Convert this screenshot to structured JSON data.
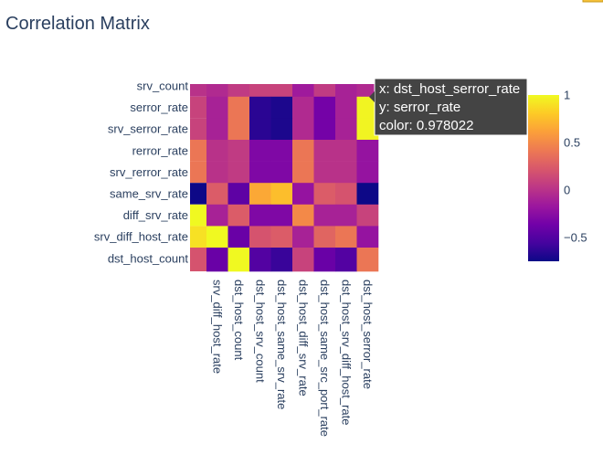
{
  "chart_data": {
    "type": "heatmap",
    "title": "Correlation Matrix",
    "x_labels": [
      "srv_diff_host_rate",
      "dst_host_count",
      "dst_host_srv_count",
      "dst_host_same_srv_rate",
      "dst_host_diff_srv_rate",
      "dst_host_same_src_port_rate",
      "dst_host_srv_diff_host_rate",
      "dst_host_serror_rate"
    ],
    "y_labels": [
      "srv_count",
      "serror_rate",
      "srv_serror_rate",
      "rerror_rate",
      "srv_rerror_rate",
      "same_srv_rate",
      "diff_srv_rate",
      "srv_diff_host_rate",
      "dst_host_count"
    ],
    "values": [
      [
        -0.05,
        0.05,
        0.1,
        0.1,
        -0.15,
        0.05,
        -0.1,
        -0.05
      ],
      [
        -0.1,
        0.4,
        -0.65,
        -0.7,
        -0.05,
        -0.35,
        -0.1,
        0.978022
      ],
      [
        -0.1,
        0.4,
        -0.65,
        -0.7,
        -0.05,
        -0.35,
        -0.1,
        0.98
      ],
      [
        0.0,
        0.05,
        -0.3,
        -0.3,
        0.4,
        0.0,
        0.0,
        -0.2
      ],
      [
        0.0,
        0.05,
        -0.3,
        -0.3,
        0.4,
        0.0,
        0.0,
        -0.2
      ],
      [
        0.25,
        -0.45,
        0.65,
        0.75,
        -0.2,
        0.25,
        0.2,
        -0.75
      ],
      [
        -0.1,
        0.25,
        -0.3,
        -0.3,
        0.5,
        -0.1,
        -0.1,
        0.1
      ],
      [
        1.0,
        -0.4,
        0.2,
        0.25,
        -0.1,
        0.3,
        0.4,
        -0.2
      ],
      [
        -0.4,
        1.0,
        -0.5,
        -0.6,
        0.1,
        -0.4,
        -0.5,
        0.4
      ]
    ],
    "colorscale": [
      "#0d0887",
      "#46039f",
      "#7201a8",
      "#9c179e",
      "#bd3786",
      "#d8576b",
      "#ed7953",
      "#fb9f3a",
      "#fdca26",
      "#f0f921"
    ],
    "colorbar": {
      "range": [
        -0.75,
        1
      ],
      "tick_values": [
        1,
        0.5,
        0,
        -0.5
      ],
      "tick_labels": [
        "1",
        "0.5",
        "0",
        "−0.5"
      ]
    },
    "hover": {
      "x_line": "x: dst_host_serror_rate",
      "y_line": "y: serror_rate",
      "color_line": "color: 0.978022",
      "row": 1,
      "col": 7
    }
  }
}
